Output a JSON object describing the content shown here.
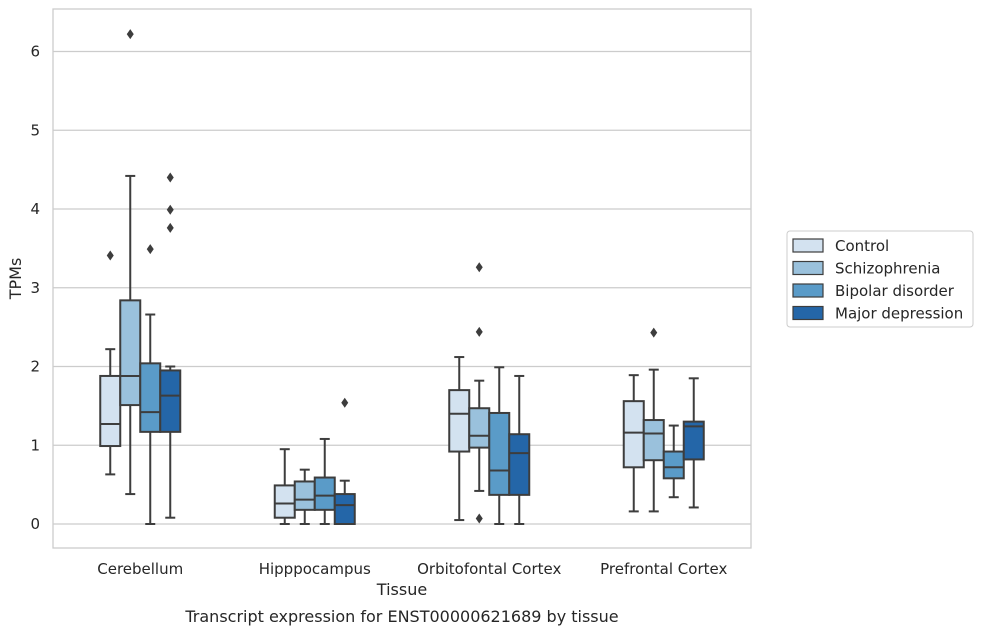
{
  "chart_data": {
    "type": "boxplot",
    "xlabel": "Tissue",
    "ylabel": "TPMs",
    "caption": "Transcript expression for ENST00000621689 by tissue",
    "ylim": [
      -0.3,
      6.55
    ],
    "yticks": [
      0,
      1,
      2,
      3,
      4,
      5,
      6
    ],
    "grid": "horizontal",
    "legend_placement": "right",
    "categories": [
      "Cerebellum",
      "Hipppocampus",
      "Orbitofontal Cortex",
      "Prefrontal Cortex"
    ],
    "series": [
      {
        "name": "Control",
        "color": "#d3e2f0",
        "boxes": [
          {
            "whislo": 0.63,
            "q1": 0.99,
            "med": 1.27,
            "q3": 1.88,
            "whishi": 2.22,
            "fliers": [
              3.41
            ]
          },
          {
            "whislo": 0.0,
            "q1": 0.08,
            "med": 0.26,
            "q3": 0.49,
            "whishi": 0.95,
            "fliers": []
          },
          {
            "whislo": 0.05,
            "q1": 0.92,
            "med": 1.4,
            "q3": 1.7,
            "whishi": 2.12,
            "fliers": []
          },
          {
            "whislo": 0.16,
            "q1": 0.72,
            "med": 1.16,
            "q3": 1.56,
            "whishi": 1.89,
            "fliers": []
          }
        ]
      },
      {
        "name": "Schizophrenia",
        "color": "#9ac1dc",
        "boxes": [
          {
            "whislo": 0.38,
            "q1": 1.51,
            "med": 1.88,
            "q3": 2.84,
            "whishi": 4.42,
            "fliers": [
              6.22
            ]
          },
          {
            "whislo": 0.0,
            "q1": 0.18,
            "med": 0.31,
            "q3": 0.54,
            "whishi": 0.69,
            "fliers": []
          },
          {
            "whislo": 0.42,
            "q1": 0.97,
            "med": 1.12,
            "q3": 1.47,
            "whishi": 1.82,
            "fliers": [
              3.26,
              2.44,
              0.07
            ]
          },
          {
            "whislo": 0.16,
            "q1": 0.81,
            "med": 1.15,
            "q3": 1.32,
            "whishi": 1.96,
            "fliers": [
              2.43
            ]
          }
        ]
      },
      {
        "name": "Bipolar disorder",
        "color": "#5a9bc8",
        "boxes": [
          {
            "whislo": 0.0,
            "q1": 1.17,
            "med": 1.42,
            "q3": 2.04,
            "whishi": 2.66,
            "fliers": [
              3.49
            ]
          },
          {
            "whislo": 0.0,
            "q1": 0.18,
            "med": 0.36,
            "q3": 0.59,
            "whishi": 1.08,
            "fliers": []
          },
          {
            "whislo": 0.0,
            "q1": 0.37,
            "med": 0.68,
            "q3": 1.41,
            "whishi": 1.99,
            "fliers": []
          },
          {
            "whislo": 0.34,
            "q1": 0.58,
            "med": 0.72,
            "q3": 0.92,
            "whishi": 1.25,
            "fliers": []
          }
        ]
      },
      {
        "name": "Major depression",
        "color": "#2466a8",
        "boxes": [
          {
            "whislo": 0.08,
            "q1": 1.17,
            "med": 1.63,
            "q3": 1.95,
            "whishi": 2.0,
            "fliers": [
              4.4,
              3.99,
              3.76
            ]
          },
          {
            "whislo": 0.0,
            "q1": 0.0,
            "med": 0.24,
            "q3": 0.38,
            "whishi": 0.55,
            "fliers": [
              1.54
            ]
          },
          {
            "whislo": 0.0,
            "q1": 0.37,
            "med": 0.9,
            "q3": 1.14,
            "whishi": 1.88,
            "fliers": []
          },
          {
            "whislo": 0.21,
            "q1": 0.82,
            "med": 1.24,
            "q3": 1.3,
            "whishi": 1.85,
            "fliers": []
          }
        ]
      }
    ]
  }
}
